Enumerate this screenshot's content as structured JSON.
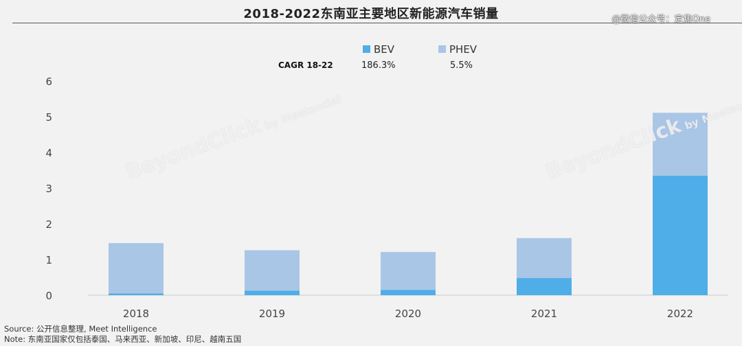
{
  "header": {
    "title": "2018-2022东南亚主要地区新能源汽车销量",
    "handle": "@微信公众号：定焦One"
  },
  "legend": {
    "cagr_label": "CAGR 18-22",
    "items": [
      {
        "name": "BEV",
        "cagr": "186.3%",
        "color": "#4faee8"
      },
      {
        "name": "PHEV",
        "cagr": "5.5%",
        "color": "#aac6e6"
      }
    ]
  },
  "watermark": {
    "brand": "BeyondClick",
    "by": "by",
    "source": "Meetsocial"
  },
  "chart_data": {
    "type": "bar",
    "stacked": true,
    "title": "2018-2022东南亚主要地区新能源汽车销量",
    "categories": [
      "2018",
      "2019",
      "2020",
      "2021",
      "2022"
    ],
    "series": [
      {
        "name": "BEV",
        "values": [
          0.05,
          0.13,
          0.15,
          0.48,
          3.35
        ],
        "color": "#4faee8"
      },
      {
        "name": "PHEV",
        "values": [
          1.41,
          1.13,
          1.06,
          1.12,
          1.76
        ],
        "color": "#aac6e6"
      }
    ],
    "y_ticks": [
      "0",
      "1",
      "2",
      "3",
      "4",
      "5",
      "6"
    ],
    "ylim": [
      0,
      6
    ],
    "grid": false,
    "legend_position": "top"
  },
  "footer": {
    "source": "Source: 公开信息整理, Meet Intelligence",
    "note": "Note: 东南亚国家仅包括泰国、马来西亚、新加坡、印尼、越南五国"
  }
}
